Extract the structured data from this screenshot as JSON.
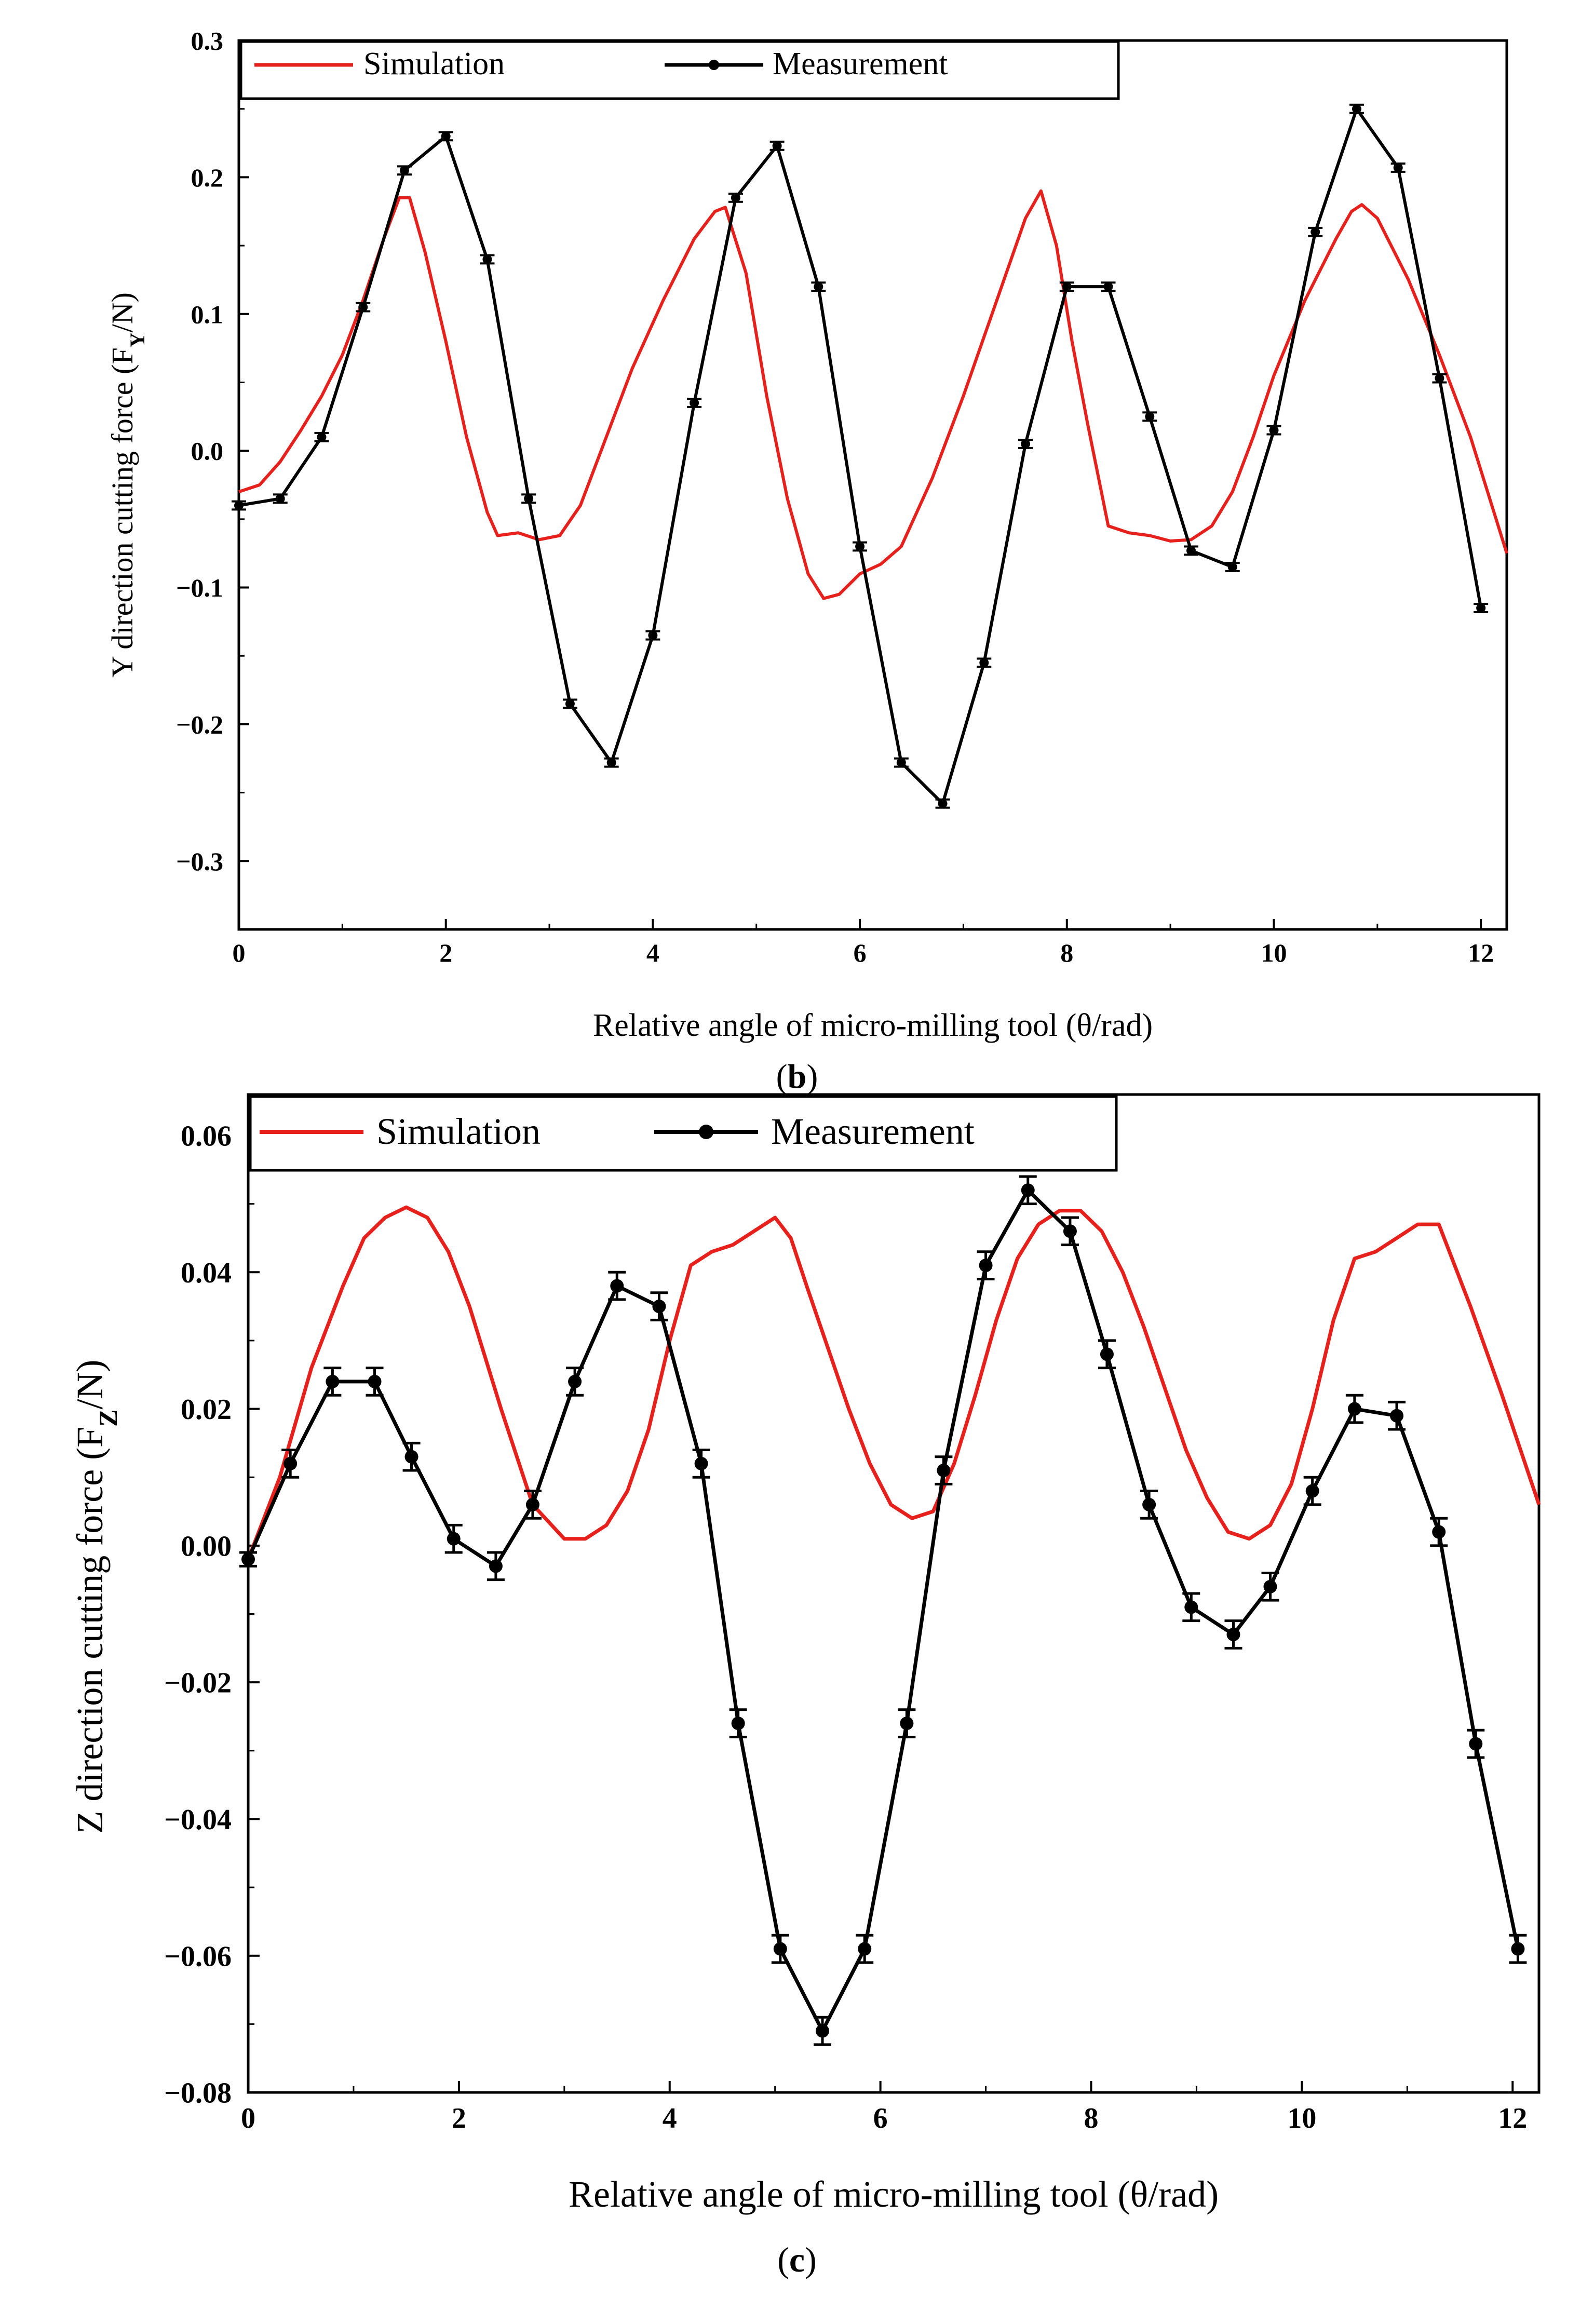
{
  "chart_data": [
    {
      "type": "line",
      "panel_label": "b",
      "xlabel": "Relative angle of micro-milling tool (θ/rad)",
      "ylabel_main": "Y direction cutting force (F",
      "ylabel_sub": "Y",
      "ylabel_tail": "/N)",
      "xlim": [
        0,
        12.25
      ],
      "ylim": [
        -0.35,
        0.3
      ],
      "x_ticks": [
        0,
        2,
        4,
        6,
        8,
        10,
        12
      ],
      "x_tick_labels": [
        "0",
        "2",
        "4",
        "6",
        "8",
        "10",
        "12"
      ],
      "y_ticks": [
        -0.3,
        -0.2,
        -0.1,
        0.0,
        0.1,
        0.2,
        0.3
      ],
      "y_tick_labels": [
        "−0.3",
        "−0.2",
        "−0.1",
        "0.0",
        "0.1",
        "0.2",
        "0.3"
      ],
      "legend": [
        "Simulation",
        "Measurement"
      ],
      "series": [
        {
          "name": "Simulation",
          "color": "#e8201c",
          "x": [
            0,
            0.2,
            0.4,
            0.6,
            0.8,
            1.0,
            1.2,
            1.4,
            1.55,
            1.65,
            1.8,
            2.0,
            2.2,
            2.4,
            2.5,
            2.7,
            2.9,
            3.1,
            3.3,
            3.5,
            3.8,
            4.1,
            4.4,
            4.6,
            4.7,
            4.9,
            5.1,
            5.3,
            5.5,
            5.65,
            5.8,
            6.0,
            6.2,
            6.4,
            6.7,
            7.0,
            7.3,
            7.6,
            7.75,
            7.9,
            8.05,
            8.2,
            8.4,
            8.6,
            8.8,
            9.0,
            9.2,
            9.4,
            9.6,
            9.8,
            10.0,
            10.3,
            10.6,
            10.75,
            10.85,
            11.0,
            11.3,
            11.6,
            11.9,
            12.25
          ],
          "y": [
            -0.03,
            -0.025,
            -0.008,
            0.015,
            0.04,
            0.07,
            0.11,
            0.155,
            0.185,
            0.185,
            0.145,
            0.08,
            0.01,
            -0.045,
            -0.062,
            -0.06,
            -0.065,
            -0.062,
            -0.04,
            0.0,
            0.06,
            0.11,
            0.155,
            0.175,
            0.178,
            0.13,
            0.04,
            -0.035,
            -0.09,
            -0.108,
            -0.105,
            -0.09,
            -0.083,
            -0.07,
            -0.02,
            0.04,
            0.105,
            0.17,
            0.19,
            0.15,
            0.08,
            0.02,
            -0.055,
            -0.06,
            -0.062,
            -0.066,
            -0.065,
            -0.055,
            -0.03,
            0.01,
            0.055,
            0.11,
            0.155,
            0.175,
            0.18,
            0.17,
            0.125,
            0.07,
            0.01,
            -0.075
          ]
        },
        {
          "name": "Measurement",
          "color": "#000000",
          "x": [
            0,
            0.4,
            0.8,
            1.2,
            1.6,
            2.0,
            2.4,
            2.8,
            3.2,
            3.6,
            4.0,
            4.4,
            4.8,
            5.2,
            5.6,
            6.0,
            6.4,
            6.8,
            7.2,
            7.6,
            8.0,
            8.4,
            8.8,
            9.2,
            9.6,
            10.0,
            10.4,
            10.8,
            11.2,
            11.6,
            12.0
          ],
          "y": [
            -0.04,
            -0.035,
            0.01,
            0.105,
            0.205,
            0.23,
            0.14,
            -0.035,
            -0.185,
            -0.228,
            -0.135,
            0.035,
            0.185,
            0.223,
            0.12,
            -0.07,
            -0.228,
            -0.258,
            -0.155,
            0.005,
            0.12,
            0.12,
            0.025,
            -0.073,
            -0.085,
            0.015,
            0.16,
            0.25,
            0.207,
            0.053,
            -0.115
          ],
          "err": [
            0.003,
            0.003,
            0.003,
            0.003,
            0.003,
            0.003,
            0.003,
            0.003,
            0.003,
            0.003,
            0.003,
            0.003,
            0.003,
            0.003,
            0.003,
            0.003,
            0.003,
            0.003,
            0.003,
            0.003,
            0.003,
            0.003,
            0.003,
            0.003,
            0.003,
            0.003,
            0.003,
            0.003,
            0.003,
            0.003,
            0.003
          ]
        }
      ]
    },
    {
      "type": "line",
      "panel_label": "c",
      "xlabel": "Relative angle of micro-milling tool (θ/rad)",
      "ylabel_main": "Z direction cutting force (F",
      "ylabel_sub": "Z",
      "ylabel_tail": "/N)",
      "xlim": [
        0,
        12.25
      ],
      "ylim": [
        -0.08,
        0.066
      ],
      "x_ticks": [
        0,
        2,
        4,
        6,
        8,
        10,
        12
      ],
      "x_tick_labels": [
        "0",
        "2",
        "4",
        "6",
        "8",
        "10",
        "12"
      ],
      "y_ticks": [
        -0.08,
        -0.06,
        -0.04,
        -0.02,
        0.0,
        0.02,
        0.04,
        0.06
      ],
      "y_tick_labels": [
        "−0.08",
        "−0.06",
        "−0.04",
        "−0.02",
        "0.00",
        "0.02",
        "0.04",
        "0.06"
      ],
      "legend": [
        "Simulation",
        "Measurement"
      ],
      "series": [
        {
          "name": "Simulation",
          "color": "#e8201c",
          "x": [
            0,
            0.3,
            0.6,
            0.9,
            1.1,
            1.3,
            1.5,
            1.7,
            1.9,
            2.1,
            2.4,
            2.7,
            3.0,
            3.2,
            3.4,
            3.6,
            3.8,
            4.0,
            4.2,
            4.4,
            4.6,
            4.8,
            5.0,
            5.15,
            5.3,
            5.5,
            5.7,
            5.9,
            6.1,
            6.3,
            6.5,
            6.7,
            6.9,
            7.1,
            7.3,
            7.5,
            7.7,
            7.9,
            8.1,
            8.3,
            8.5,
            8.7,
            8.9,
            9.1,
            9.3,
            9.5,
            9.7,
            9.9,
            10.1,
            10.3,
            10.5,
            10.7,
            10.9,
            11.1,
            11.3,
            11.6,
            11.9,
            12.25
          ],
          "y": [
            -0.002,
            0.01,
            0.026,
            0.038,
            0.045,
            0.048,
            0.0495,
            0.048,
            0.043,
            0.035,
            0.02,
            0.006,
            0.001,
            0.001,
            0.003,
            0.008,
            0.017,
            0.03,
            0.041,
            0.043,
            0.044,
            0.046,
            0.048,
            0.045,
            0.038,
            0.029,
            0.02,
            0.012,
            0.006,
            0.004,
            0.005,
            0.012,
            0.022,
            0.033,
            0.042,
            0.047,
            0.049,
            0.049,
            0.046,
            0.04,
            0.032,
            0.023,
            0.014,
            0.007,
            0.002,
            0.001,
            0.003,
            0.009,
            0.02,
            0.033,
            0.042,
            0.043,
            0.045,
            0.047,
            0.047,
            0.035,
            0.022,
            0.006
          ]
        },
        {
          "name": "Measurement",
          "color": "#000000",
          "x": [
            0,
            0.4,
            0.8,
            1.2,
            1.55,
            1.95,
            2.35,
            2.7,
            3.1,
            3.5,
            3.9,
            4.3,
            4.65,
            5.05,
            5.45,
            5.85,
            6.25,
            6.6,
            7.0,
            7.4,
            7.8,
            8.15,
            8.55,
            8.95,
            9.35,
            9.7,
            10.1,
            10.5,
            10.9,
            11.3,
            11.65,
            12.05
          ],
          "y": [
            -0.002,
            0.012,
            0.024,
            0.024,
            0.013,
            0.001,
            -0.003,
            0.006,
            0.024,
            0.038,
            0.035,
            0.012,
            -0.026,
            -0.059,
            -0.071,
            -0.059,
            -0.026,
            0.011,
            0.041,
            0.052,
            0.046,
            0.028,
            0.006,
            -0.009,
            -0.013,
            -0.006,
            0.008,
            0.02,
            0.019,
            0.002,
            -0.029,
            -0.059
          ],
          "err": [
            0.001,
            0.002,
            0.002,
            0.002,
            0.002,
            0.002,
            0.002,
            0.002,
            0.002,
            0.002,
            0.002,
            0.002,
            0.002,
            0.002,
            0.002,
            0.002,
            0.002,
            0.002,
            0.002,
            0.002,
            0.002,
            0.002,
            0.002,
            0.002,
            0.002,
            0.002,
            0.002,
            0.002,
            0.002,
            0.002,
            0.002,
            0.002
          ]
        }
      ]
    }
  ]
}
